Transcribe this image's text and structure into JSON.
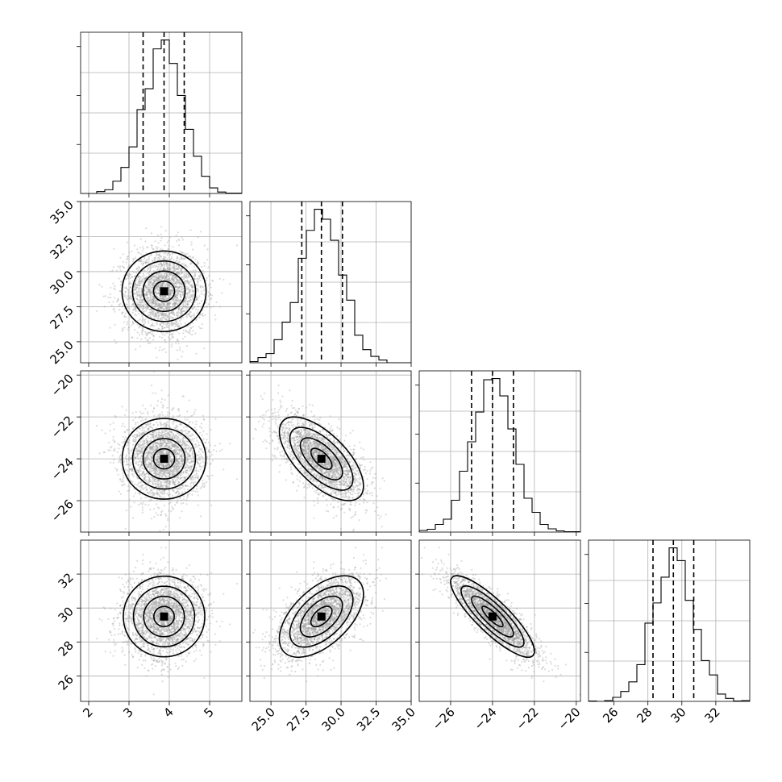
{
  "chart_data": {
    "type": "corner",
    "parameters": [
      {
        "mean": 3.87,
        "std": 0.5,
        "range": [
          1.8,
          5.8
        ],
        "ticks": [
          2,
          3,
          4,
          5
        ],
        "tick_labels": [
          "2",
          "3",
          "4",
          "5"
        ],
        "quantiles": [
          3.35,
          3.87,
          4.37
        ]
      },
      {
        "mean": 28.6,
        "std": 1.5,
        "range": [
          23.5,
          35.0
        ],
        "ticks": [
          25.0,
          27.5,
          30.0,
          32.5,
          35.0
        ],
        "tick_labels": [
          "25.0",
          "27.5",
          "30.0",
          "32.5",
          "35.0"
        ],
        "quantiles": [
          27.2,
          28.6,
          30.1
        ]
      },
      {
        "mean": -24.0,
        "std": 1.0,
        "range": [
          -27.5,
          -19.8
        ],
        "ticks": [
          -26,
          -24,
          -22,
          -20
        ],
        "tick_labels": [
          "−26",
          "−24",
          "−22",
          "−20"
        ],
        "quantiles": [
          -25.0,
          -24.0,
          -23.0
        ]
      },
      {
        "mean": 29.5,
        "std": 1.2,
        "range": [
          24.5,
          34.0
        ],
        "ticks": [
          26,
          28,
          30,
          32
        ],
        "tick_labels": [
          "26",
          "28",
          "30",
          "32"
        ],
        "quantiles": [
          28.3,
          29.5,
          30.7
        ]
      }
    ],
    "correlations": [
      [
        1.0,
        0.0,
        0.0,
        0.0
      ],
      [
        0.0,
        1.0,
        -0.65,
        0.55
      ],
      [
        0.0,
        -0.65,
        1.0,
        -0.85
      ],
      [
        0.0,
        0.55,
        -0.85,
        1.0
      ]
    ],
    "histogram_bins": 20,
    "contour_levels_sigma": [
      0.5,
      1.0,
      1.5,
      2.0
    ],
    "grid": true,
    "colors": {
      "line": "#000000",
      "samples": "#9a9a9a",
      "grid": "#b0b0b0",
      "density": "#000000"
    }
  }
}
